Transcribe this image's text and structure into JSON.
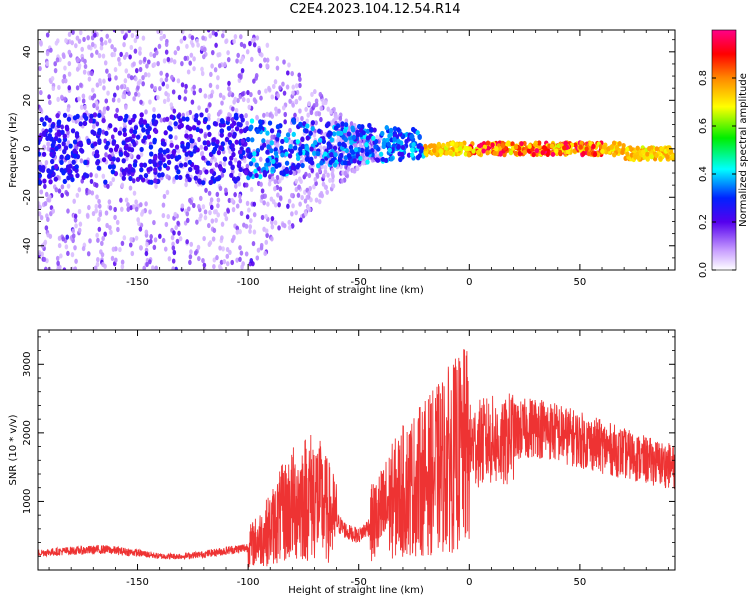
{
  "title": "C2E4.2023.104.12.54.R14",
  "chart_data": [
    {
      "type": "heatmap",
      "xlabel": "Height of straight line (km)",
      "ylabel": "Frequency (Hz)",
      "xlim": [
        -195,
        93
      ],
      "ylim": [
        -50,
        49
      ],
      "xticks": [
        -150,
        -100,
        -50,
        0,
        50
      ],
      "xtick_labels": [
        "-150",
        "-100",
        "-50",
        "0",
        "50"
      ],
      "yticks": [
        -40,
        -20,
        0,
        20,
        40
      ],
      "ytick_labels": [
        "-40",
        "-20",
        "0",
        "20",
        "40"
      ],
      "colorbar": {
        "label": "Normalized spectral amplitude",
        "range": [
          0,
          1
        ],
        "ticks": [
          0.0,
          0.2,
          0.4,
          0.6,
          0.8
        ],
        "tick_labels": [
          "0.0",
          "0.2",
          "0.4",
          "0.6",
          "0.8"
        ]
      },
      "grid": false
    },
    {
      "type": "line",
      "xlabel": "Height of straight line (km)",
      "ylabel": "SNR (10 * v/v)",
      "xlim": [
        -195,
        93
      ],
      "ylim": [
        0,
        3500
      ],
      "xticks": [
        -150,
        -100,
        -50,
        0,
        50
      ],
      "xtick_labels": [
        "-150",
        "-100",
        "-50",
        "0",
        "50"
      ],
      "yticks": [
        1000,
        2000,
        3000
      ],
      "ytick_labels": [
        "1000",
        "2000",
        "3000"
      ],
      "color": "#ee3333",
      "x": [
        -195,
        -180,
        -165,
        -150,
        -140,
        -130,
        -120,
        -110,
        -100,
        -95,
        -90,
        -85,
        -80,
        -75,
        -70,
        -65,
        -60,
        -55,
        -50,
        -45,
        -40,
        -35,
        -30,
        -25,
        -20,
        -15,
        -10,
        -5,
        0,
        5,
        10,
        15,
        20,
        25,
        30,
        40,
        50,
        60,
        70,
        80,
        93
      ],
      "y": [
        250,
        280,
        300,
        250,
        200,
        200,
        230,
        280,
        330,
        450,
        600,
        800,
        950,
        1050,
        1100,
        900,
        700,
        550,
        500,
        650,
        800,
        1000,
        1150,
        1250,
        1350,
        1450,
        1600,
        1700,
        1800,
        1850,
        1900,
        1800,
        2000,
        2050,
        2100,
        2000,
        1900,
        1800,
        1700,
        1600,
        1500
      ],
      "grid": false
    }
  ]
}
